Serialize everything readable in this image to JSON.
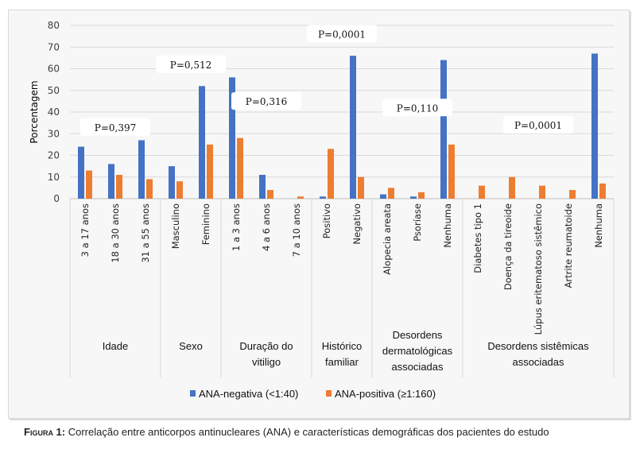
{
  "chart_data": {
    "type": "bar",
    "title": "",
    "xlabel": "",
    "ylabel": "Porcentagem",
    "ylim": [
      0,
      80
    ],
    "yticks": [
      0,
      10,
      20,
      30,
      40,
      50,
      60,
      70,
      80
    ],
    "grid": true,
    "legend_position": "bottom",
    "categories": [
      "3 a 17 anos",
      "18 a 30 anos",
      "31 a 55 anos",
      "Masculino",
      "Feminino",
      "1 a 3 anos",
      "4 a 6 anos",
      "7 a 10 anos",
      "Positivo",
      "Negativo",
      "Alopecia areata",
      "Psoríase",
      "Nenhuma",
      "Diabetes tipo 1",
      "Doença da tireoide",
      "Lúpus eritematoso sistêmico",
      "Artrite reumatoide",
      "Nenhuma"
    ],
    "groups": [
      {
        "label": [
          "Idade"
        ],
        "count": 3,
        "pvalue": "P=0,397",
        "pvalue_level": 32
      },
      {
        "label": [
          "Sexo"
        ],
        "count": 2,
        "pvalue": "P=0,512",
        "pvalue_level": 61
      },
      {
        "label": [
          "Duração do",
          "vitiligo"
        ],
        "count": 3,
        "pvalue": "P=0,316",
        "pvalue_level": 44
      },
      {
        "label": [
          "Histórico",
          "familiar"
        ],
        "count": 2,
        "pvalue": "P=0,0001",
        "pvalue_level": 75
      },
      {
        "label": [
          "Desordens",
          "dermatológicas",
          "associadas"
        ],
        "count": 3,
        "pvalue": "P=0,110",
        "pvalue_level": 41
      },
      {
        "label": [
          "Desordens sistêmicas",
          "associadas"
        ],
        "count": 5,
        "pvalue": "P=0,0001",
        "pvalue_level": 33
      }
    ],
    "series": [
      {
        "name": "ANA-negativa (<1:40)",
        "color": "#4472c4",
        "values": [
          24,
          16,
          27,
          15,
          52,
          56,
          11,
          0,
          1,
          66,
          2,
          1,
          64,
          0,
          0,
          0,
          0,
          67
        ]
      },
      {
        "name": "ANA-positiva (≥1:160)",
        "color": "#ed7d31",
        "values": [
          13,
          11,
          9,
          8,
          25,
          28,
          4,
          1,
          23,
          10,
          5,
          3,
          25,
          6,
          10,
          6,
          4,
          7
        ]
      }
    ]
  },
  "caption": {
    "label": "Figura 1:",
    "text": " Correlação entre anticorpos antinucleares (ANA) e características demográficas dos pacientes do estudo"
  }
}
